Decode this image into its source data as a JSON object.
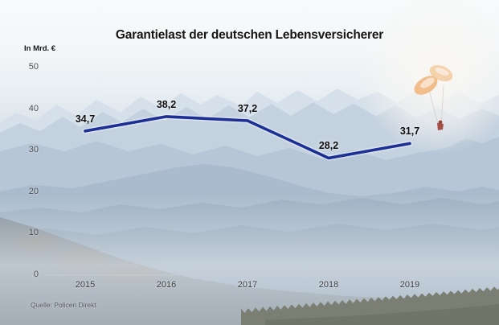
{
  "title": "Garantielast der deutschen Lebensversicherer",
  "source": "Quelle: Policen Direkt",
  "chart_data": {
    "type": "line",
    "title": "Garantielast der deutschen Lebensversicherer",
    "categories": [
      "2015",
      "2016",
      "2017",
      "2018",
      "2019"
    ],
    "values": [
      34.7,
      38.2,
      37.2,
      28.2,
      31.7
    ],
    "value_labels": [
      "34,7",
      "38,2",
      "37,2",
      "28,2",
      "31,7"
    ],
    "xlabel": "",
    "ylabel": "In Mrd. €",
    "yticks": [
      0,
      10,
      20,
      30,
      40,
      50
    ],
    "ylim": [
      0,
      50
    ],
    "grid": false,
    "legend": "none",
    "line_color": "#1b2f94",
    "background_description": "hazy mountain photo with orange paraglider upper right"
  },
  "colors": {
    "line": "#1b2f94",
    "axis": "#c9ccd1",
    "title_text": "#151515",
    "tick_text": "#4b4e52",
    "paraglider_wing": "#f0b77f",
    "paraglider_pilot": "#a65048"
  }
}
